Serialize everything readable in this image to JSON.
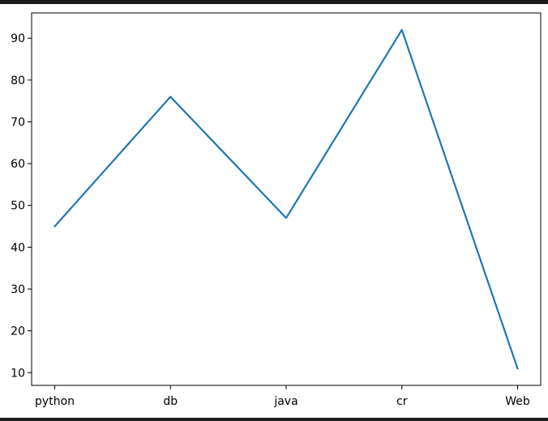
{
  "chart_data": {
    "type": "line",
    "categories": [
      "python",
      "db",
      "java",
      "cr",
      "Web"
    ],
    "series": [
      {
        "values": [
          45,
          76,
          47,
          92,
          11
        ],
        "color": "#1f77b4"
      }
    ],
    "yticks": [
      10,
      20,
      30,
      40,
      50,
      60,
      70,
      80,
      90
    ],
    "ylim": [
      6.95,
      96.05
    ],
    "grid": false,
    "legend": "none",
    "title": "",
    "xlabel": "",
    "ylabel": ""
  }
}
